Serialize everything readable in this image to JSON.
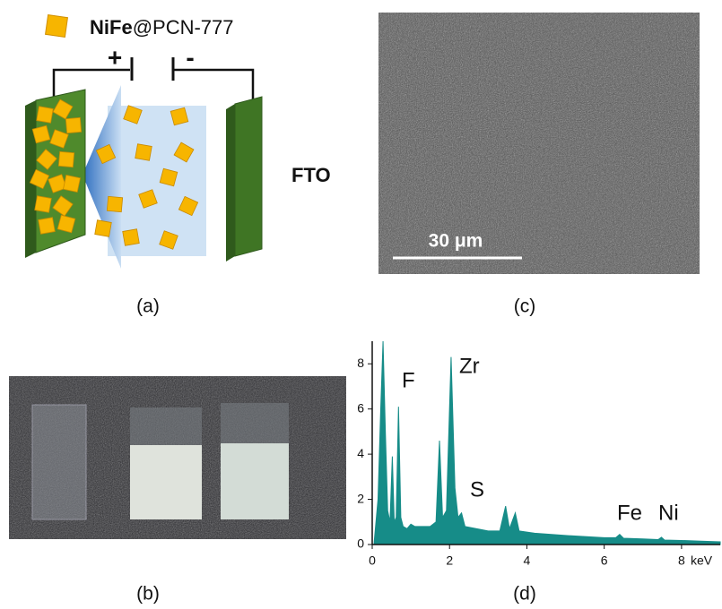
{
  "figure": {
    "panel_a": {
      "label": "(a)",
      "legend_bold": "NiFe",
      "legend_rest": "@PCN-777",
      "plus": "+",
      "minus": "-",
      "electrode": "FTO"
    },
    "panel_b": {
      "label": "(b)"
    },
    "panel_c": {
      "label": "(c)",
      "scale_bar": "30 μm"
    },
    "panel_d": {
      "label": "(d)"
    }
  },
  "chart_data": {
    "type": "area",
    "color": "#168c88",
    "x": [
      0.05,
      0.15,
      0.22,
      0.28,
      0.34,
      0.4,
      0.46,
      0.52,
      0.57,
      0.62,
      0.68,
      0.74,
      0.8,
      0.9,
      1.0,
      1.1,
      1.3,
      1.5,
      1.65,
      1.74,
      1.82,
      1.92,
      2.04,
      2.14,
      2.22,
      2.31,
      2.4,
      2.7,
      3.0,
      3.3,
      3.45,
      3.55,
      3.7,
      3.8,
      4.2,
      4.6,
      5.0,
      5.5,
      6.0,
      6.3,
      6.4,
      6.5,
      7.0,
      7.4,
      7.48,
      7.56,
      8.0,
      8.5,
      9.0
    ],
    "values": [
      0.1,
      2,
      6,
      9,
      5,
      1.5,
      1.0,
      3.9,
      1.0,
      1.2,
      6.1,
      1.2,
      0.8,
      0.7,
      0.9,
      0.8,
      0.8,
      0.8,
      1.0,
      4.6,
      1.2,
      1.5,
      8.3,
      2.5,
      1.2,
      1.4,
      0.8,
      0.7,
      0.6,
      0.6,
      1.7,
      0.7,
      1.4,
      0.6,
      0.5,
      0.45,
      0.4,
      0.35,
      0.3,
      0.3,
      0.45,
      0.28,
      0.25,
      0.22,
      0.32,
      0.2,
      0.18,
      0.15,
      0.12
    ],
    "xlim": [
      0,
      9
    ],
    "ylim": [
      0,
      9
    ],
    "xticks": [
      0,
      2,
      4,
      6,
      8
    ],
    "yticks": [
      0,
      2,
      4,
      6,
      8
    ],
    "x_unit": "keV",
    "annotations": [
      "F",
      "Zr",
      "S",
      "Fe",
      "Ni"
    ]
  }
}
